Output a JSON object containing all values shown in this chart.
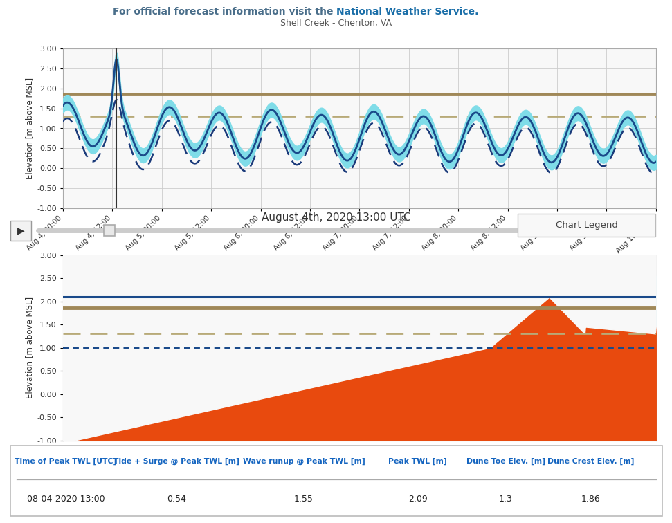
{
  "subtitle": "Shell Creek - Cheriton, VA",
  "bottom_chart_title": "August 4th, 2020 13:00 UTC",
  "ylabel": "Elevation [m above MSL]",
  "dune_toe": 1.3,
  "dune_crest": 1.86,
  "twl_level": 2.09,
  "tide_level": 1.0,
  "twl_upper": 2.55,
  "vertical_line_x": 13.0,
  "dune_crest_color": "#a08858",
  "dune_toe_color": "#b8aa78",
  "twl_line_color": "#1a4a8a",
  "twl_band_color": "#7fdce8",
  "tide_dashed_color": "#1a3a7a",
  "orange_fill": "#e84a0e",
  "teal_fill": "#009688",
  "cyan_fill": "#7fdce8",
  "bg_color": "#f8f8f8",
  "grid_color": "#cccccc",
  "header_color1": "#4a6e8a",
  "header_color2": "#1a6ea8",
  "table_header_color": "#1565c0",
  "table_data": {
    "time": "08-04-2020 13:00",
    "tide_surge": "0.54",
    "wave_runup": "1.55",
    "peak_twl": "2.09",
    "dune_toe": "1.3",
    "dune_crest": "1.86"
  },
  "xtick_labels": [
    "Aug 4, 00:00",
    "Aug 4, 12:00",
    "Aug 5, 00:00",
    "Aug 5, 12:00",
    "Aug 6, 00:00",
    "Aug 6, 12:00",
    "Aug 7, 00:00",
    "Aug 7, 12:00",
    "Aug 8, 00:00",
    "Aug 8, 12:00",
    "Aug 9, 00:00",
    "Aug 9, 12:00",
    "Aug 10, 00:00"
  ],
  "xtick_positions": [
    0,
    12,
    24,
    36,
    48,
    60,
    72,
    84,
    96,
    108,
    120,
    132,
    144
  ]
}
